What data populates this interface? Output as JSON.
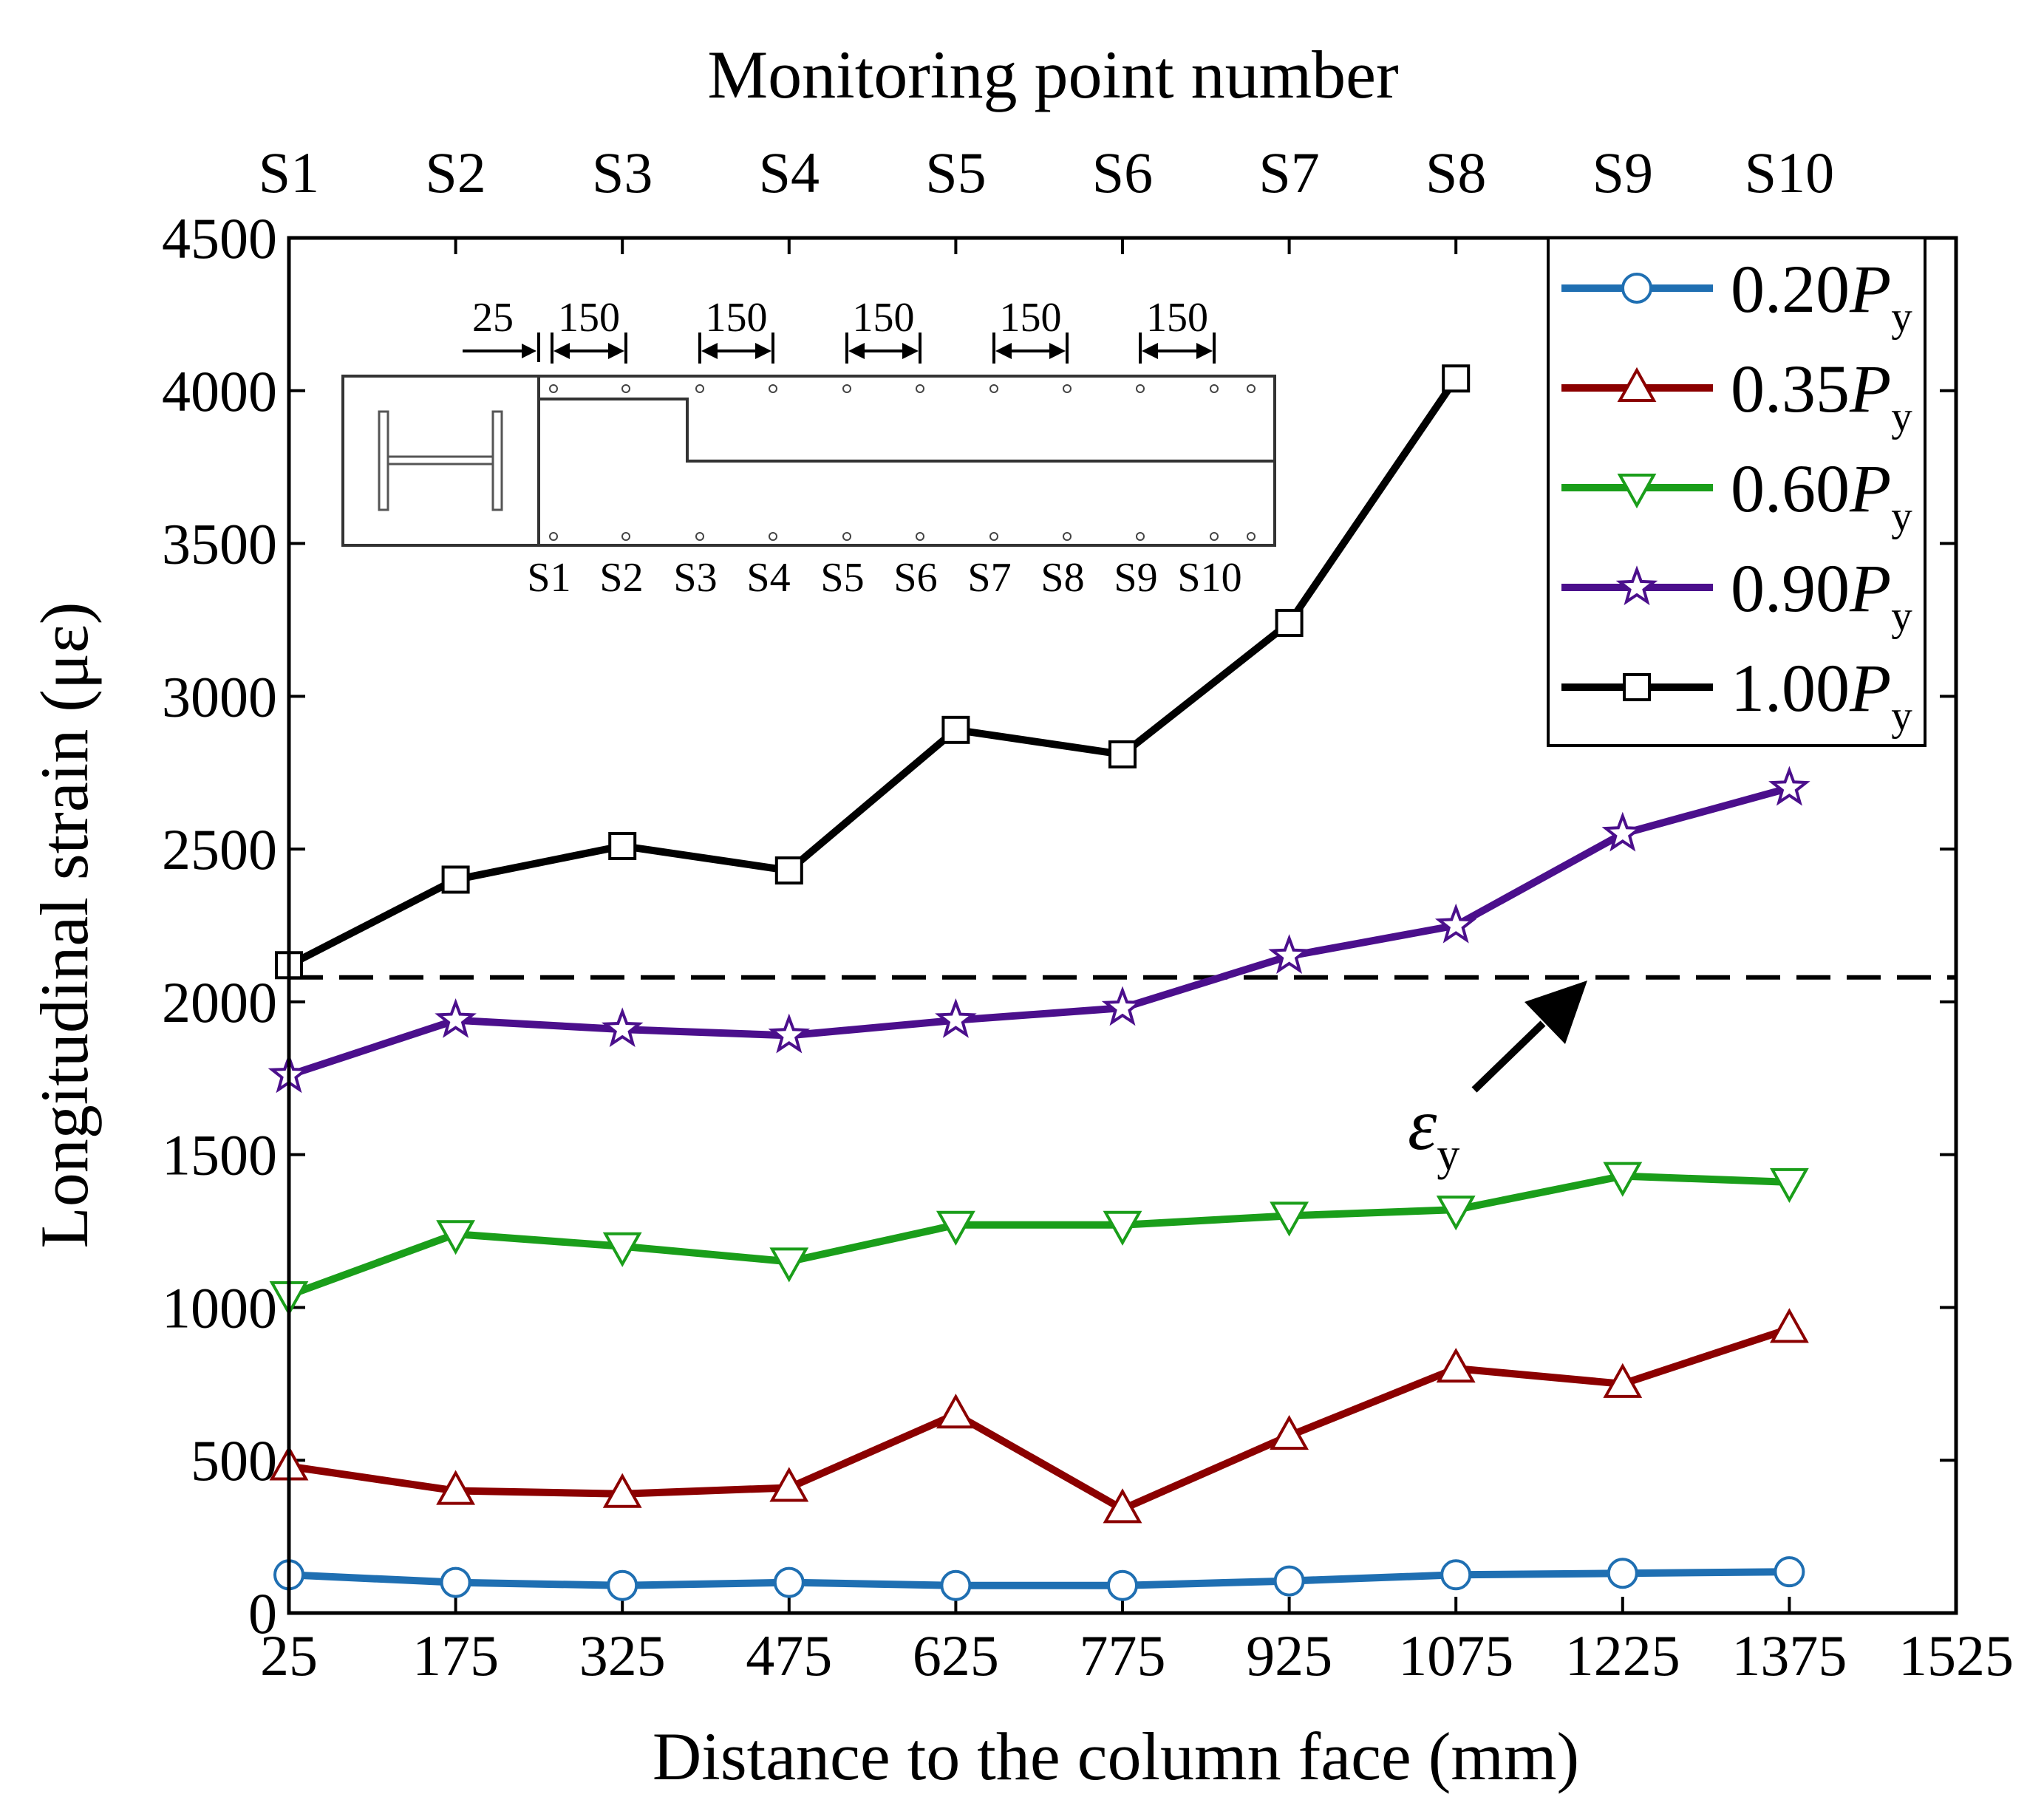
{
  "chart_data": {
    "type": "line",
    "title": "Monitoring point number",
    "xlabel": "Distance to the column face (mm)",
    "ylabel": "Longitudinal strain (με)",
    "xlim": [
      25,
      1525
    ],
    "ylim": [
      0,
      4500
    ],
    "x_ticks": [
      "25",
      "175",
      "325",
      "475",
      "625",
      "775",
      "925",
      "1075",
      "1225",
      "1375",
      "1525"
    ],
    "y_ticks": [
      "0",
      "500",
      "1000",
      "1500",
      "2000",
      "2500",
      "3000",
      "3500",
      "4000",
      "4500"
    ],
    "top_ticks": [
      "S1",
      "S2",
      "S3",
      "S4",
      "S5",
      "S6",
      "S7",
      "S8",
      "S9",
      "S10"
    ],
    "x": [
      25,
      175,
      325,
      475,
      625,
      775,
      925,
      1075,
      1225,
      1375
    ],
    "series": [
      {
        "name": "0.20P",
        "subscript": "y",
        "color": "#1f6fb2",
        "marker": "circle",
        "values": [
          125,
          100,
          90,
          100,
          90,
          90,
          105,
          125,
          130,
          135
        ]
      },
      {
        "name": "0.35P",
        "subscript": "y",
        "color": "#8b0000",
        "marker": "triangle-up",
        "values": [
          480,
          400,
          390,
          410,
          650,
          340,
          580,
          800,
          750,
          930
        ]
      },
      {
        "name": "0.60P",
        "subscript": "y",
        "color": "#1a9e1a",
        "marker": "triangle-down",
        "values": [
          1040,
          1240,
          1200,
          1150,
          1270,
          1270,
          1300,
          1320,
          1430,
          1410
        ]
      },
      {
        "name": "0.90P",
        "subscript": "y",
        "color": "#4b0f8c",
        "marker": "star",
        "values": [
          1760,
          1940,
          1910,
          1890,
          1940,
          1980,
          2150,
          2250,
          2550,
          2700
        ]
      },
      {
        "name": "1.00P",
        "subscript": "y",
        "color": "#000000",
        "marker": "square",
        "values": [
          2120,
          2400,
          2510,
          2430,
          2890,
          2810,
          3240,
          4040,
          null,
          null
        ]
      }
    ],
    "yield_line": {
      "value": 2080,
      "label": "ε",
      "subscript": "y"
    },
    "legend_position": "top-right",
    "inset": {
      "dimension_labels": [
        "25",
        "150",
        "150",
        "150",
        "150",
        "150"
      ],
      "point_labels": [
        "S1",
        "S2",
        "S3",
        "S4",
        "S5",
        "S6",
        "S7",
        "S8",
        "S9",
        "S10"
      ]
    }
  }
}
